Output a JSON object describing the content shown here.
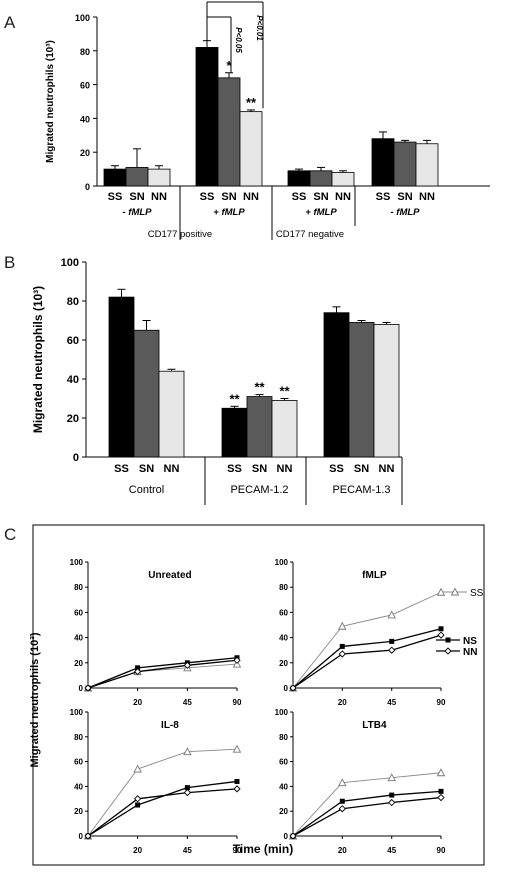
{
  "chart_data": [
    {
      "panel": "A",
      "type": "bar",
      "ylabel": "Migrated  neutrophils (10³)",
      "ylim": [
        0,
        100
      ],
      "yticks": [
        0,
        20,
        40,
        60,
        80,
        100
      ],
      "groups": [
        {
          "label": "- fMLP",
          "categories": [
            "SS",
            "SN",
            "NN"
          ],
          "values": [
            10,
            11,
            10
          ],
          "errors": [
            2,
            11,
            2
          ],
          "stars": [
            "",
            "",
            ""
          ]
        },
        {
          "label": "+ fMLP",
          "categories": [
            "SS",
            "SN",
            "NN"
          ],
          "values": [
            82,
            64,
            44
          ],
          "errors": [
            4,
            3,
            1
          ],
          "stars": [
            "",
            "*",
            "**"
          ]
        },
        {
          "label": "+ fMLP",
          "categories": [
            "SS",
            "SN",
            "NN"
          ],
          "values": [
            9,
            9,
            8
          ],
          "errors": [
            1,
            2,
            1
          ],
          "stars": [
            "",
            "",
            ""
          ]
        },
        {
          "label": "- fMLP",
          "categories": [
            "SS",
            "SN",
            "NN"
          ],
          "values": [
            28,
            26,
            25
          ],
          "errors": [
            4,
            1,
            2
          ],
          "stars": [
            "",
            "",
            ""
          ]
        }
      ],
      "supergroups": [
        "CD177 positive",
        "CD177 negative"
      ],
      "pvalues": [
        "P<0.05",
        "P<0.01"
      ],
      "series_colors": [
        "#000000",
        "#5a5a5a",
        "#e6e6e6"
      ]
    },
    {
      "panel": "B",
      "type": "bar",
      "ylabel": "Migrated  neutrophils (10³)",
      "ylim": [
        0,
        100
      ],
      "yticks": [
        0,
        20,
        40,
        60,
        80,
        100
      ],
      "groups": [
        {
          "label": "Control",
          "categories": [
            "SS",
            "SN",
            "NN"
          ],
          "values": [
            82,
            65,
            44
          ],
          "errors": [
            4,
            5,
            1
          ],
          "stars": [
            "",
            "",
            ""
          ]
        },
        {
          "label": "PECAM-1.2",
          "categories": [
            "SS",
            "SN",
            "NN"
          ],
          "values": [
            25,
            31,
            29
          ],
          "errors": [
            1,
            1,
            1
          ],
          "stars": [
            "**",
            "**",
            "**"
          ]
        },
        {
          "label": "PECAM-1.3",
          "categories": [
            "SS",
            "SN",
            "NN"
          ],
          "values": [
            74,
            69,
            68
          ],
          "errors": [
            3,
            1,
            1
          ],
          "stars": [
            "",
            "",
            ""
          ]
        }
      ],
      "series_colors": [
        "#000000",
        "#5a5a5a",
        "#e6e6e6"
      ]
    },
    {
      "panel": "C",
      "type": "line",
      "ylabel": "Migrated  neutrophils (10³)",
      "xlabel": "Time (min)",
      "x": [
        0,
        20,
        45,
        90
      ],
      "xtick_labels": [
        "20",
        "45",
        "90"
      ],
      "ylim": [
        0,
        100
      ],
      "yticks": [
        0,
        20,
        40,
        60,
        80,
        100
      ],
      "legend": [
        "SS",
        "NS",
        "NN"
      ],
      "subplots": [
        {
          "title": "Unreated",
          "series": [
            {
              "name": "SS",
              "values": [
                0,
                13,
                16,
                19
              ]
            },
            {
              "name": "NS",
              "values": [
                0,
                16,
                20,
                24
              ]
            },
            {
              "name": "NN",
              "values": [
                0,
                13,
                18,
                22
              ]
            }
          ]
        },
        {
          "title": "fMLP",
          "series": [
            {
              "name": "SS",
              "values": [
                0,
                49,
                58,
                76
              ]
            },
            {
              "name": "NS",
              "values": [
                0,
                33,
                37,
                47
              ]
            },
            {
              "name": "NN",
              "values": [
                0,
                27,
                30,
                42
              ]
            }
          ]
        },
        {
          "title": "IL-8",
          "series": [
            {
              "name": "SS",
              "values": [
                0,
                54,
                68,
                70
              ]
            },
            {
              "name": "NS",
              "values": [
                0,
                25,
                39,
                44
              ]
            },
            {
              "name": "NN",
              "values": [
                0,
                30,
                35,
                38
              ]
            }
          ]
        },
        {
          "title": "LTB4",
          "series": [
            {
              "name": "SS",
              "values": [
                0,
                43,
                47,
                51
              ]
            },
            {
              "name": "NS",
              "values": [
                0,
                28,
                33,
                36
              ]
            },
            {
              "name": "NN",
              "values": [
                0,
                22,
                27,
                31
              ]
            }
          ]
        }
      ]
    }
  ],
  "panel_letters": [
    "A",
    "B",
    "C"
  ]
}
